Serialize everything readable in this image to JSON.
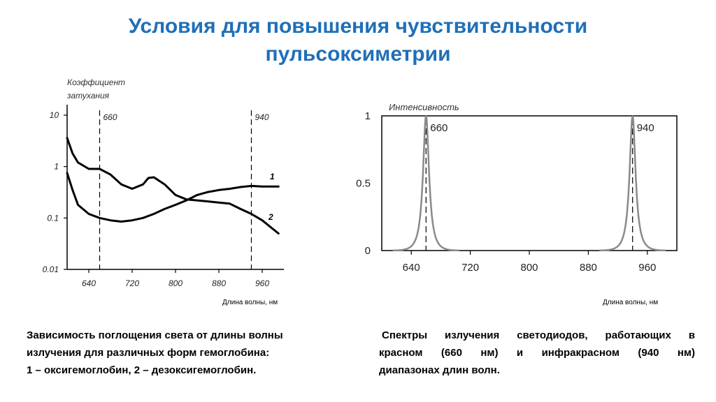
{
  "slide": {
    "title_line1": "Условия для повышения чувствительности",
    "title_line2": "пульсоксиметрии"
  },
  "captions": {
    "left_line1": "Зависимость поглощения света от длины волны",
    "left_line2": "излучения для различных форм гемоглобина:",
    "left_line3": "1 – оксигемоглобин, 2 – дезоксигемоглобин.",
    "right_line1": "Спектры излучения светодиодов, работающих в",
    "right_line2": "красном (660 нм) и инфракрасном (940 нм)",
    "right_line3": "диапазонах длин волн."
  },
  "chart_data": [
    {
      "type": "line",
      "ylabel_line1": "Коэффициент",
      "ylabel_line2": "затухания",
      "xlabel": "Длина волны, нм",
      "log_y": true,
      "xlim": [
        600,
        1000
      ],
      "ylim": [
        0.01,
        10
      ],
      "xticks": [
        "640",
        "720",
        "800",
        "880",
        "960"
      ],
      "yticks": [
        "0.01",
        "0.1",
        "1",
        "10"
      ],
      "markers": [
        {
          "x": 660,
          "label": "660"
        },
        {
          "x": 940,
          "label": "940"
        }
      ],
      "series": [
        {
          "name": "1",
          "color": "#000000",
          "x": [
            600,
            610,
            620,
            640,
            660,
            680,
            700,
            720,
            740,
            760,
            780,
            800,
            820,
            840,
            860,
            880,
            900,
            920,
            940,
            960,
            990
          ],
          "y": [
            0.75,
            0.35,
            0.18,
            0.12,
            0.1,
            0.09,
            0.085,
            0.09,
            0.1,
            0.12,
            0.15,
            0.18,
            0.22,
            0.28,
            0.32,
            0.35,
            0.37,
            0.4,
            0.42,
            0.41,
            0.41
          ]
        },
        {
          "name": "2",
          "color": "#000000",
          "x": [
            600,
            610,
            620,
            640,
            660,
            680,
            700,
            720,
            740,
            750,
            760,
            780,
            800,
            820,
            840,
            860,
            880,
            900,
            920,
            940,
            960,
            990
          ],
          "y": [
            3.6,
            1.8,
            1.2,
            0.9,
            0.9,
            0.7,
            0.45,
            0.37,
            0.45,
            0.6,
            0.62,
            0.45,
            0.28,
            0.23,
            0.22,
            0.21,
            0.2,
            0.19,
            0.15,
            0.12,
            0.09,
            0.05
          ]
        }
      ]
    },
    {
      "type": "line",
      "ylabel": "Интенсивность",
      "xlabel": "Длина волны, нм",
      "xlim": [
        600,
        1000
      ],
      "ylim": [
        0,
        1
      ],
      "xticks": [
        "640",
        "720",
        "800",
        "880",
        "960"
      ],
      "yticks": [
        "0",
        "0.5",
        "1"
      ],
      "markers": [
        {
          "x": 660,
          "label": "660"
        },
        {
          "x": 940,
          "label": "940"
        }
      ],
      "series": [
        {
          "color": "#8a8a8a",
          "peaks": [
            {
              "center": 660,
              "height": 1.0,
              "width": 10
            },
            {
              "center": 940,
              "height": 1.0,
              "width": 10
            }
          ]
        }
      ]
    }
  ]
}
